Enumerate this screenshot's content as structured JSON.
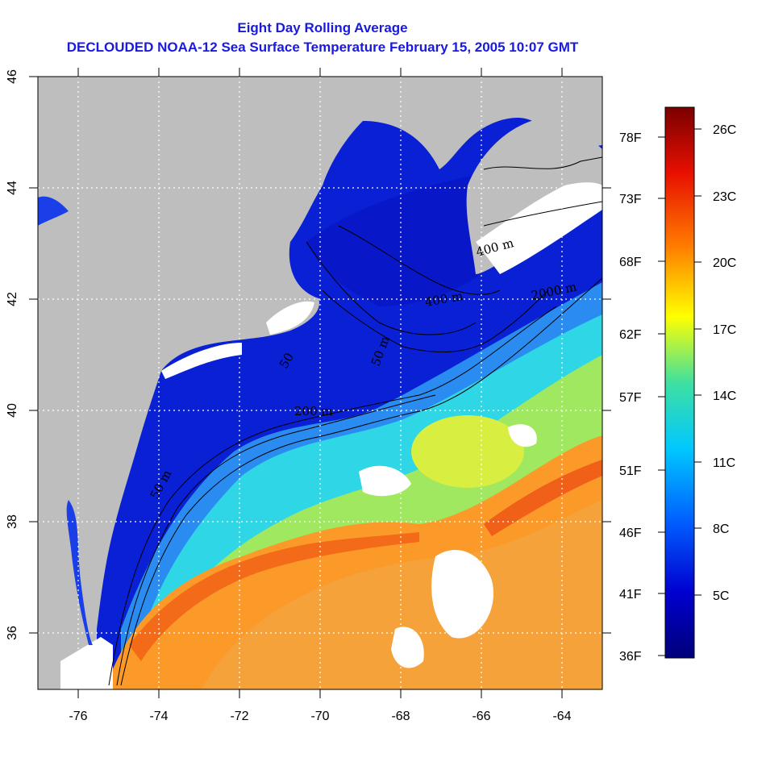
{
  "title": {
    "line1": "Eight Day Rolling Average",
    "line2": "DECLOUDED NOAA-12 Sea Surface Temperature February 15, 2005 10:07 GMT"
  },
  "map": {
    "lon_range": [
      -77,
      -63
    ],
    "lat_range": [
      35,
      46
    ],
    "lon_ticks": [
      "-76",
      "-74",
      "-72",
      "-70",
      "-68",
      "-66",
      "-64"
    ],
    "lat_ticks": [
      "36",
      "38",
      "40",
      "42",
      "44",
      "46"
    ],
    "grid": "dotted",
    "land_color": "#bebebe",
    "cloud_color": "#ffffff",
    "contour_labels": [
      "50 m",
      "200 m",
      "2000 m",
      "400 m",
      "400 m",
      "50 m",
      "50"
    ]
  },
  "colorbar": {
    "celsius_labels": [
      "26C",
      "23C",
      "20C",
      "17C",
      "14C",
      "11C",
      "8C",
      "5C"
    ],
    "fahrenheit_labels": [
      "78F",
      "73F",
      "68F",
      "62F",
      "57F",
      "51F",
      "46F",
      "41F",
      "36F"
    ],
    "colors": [
      "#7a0000",
      "#e81000",
      "#ff7a00",
      "#ffff00",
      "#3fe0a0",
      "#00c8ff",
      "#0060ff",
      "#0000d0",
      "#00007a"
    ]
  }
}
